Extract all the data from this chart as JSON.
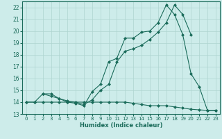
{
  "xlabel": "Humidex (Indice chaleur)",
  "background_color": "#cdecea",
  "grid_color": "#aed4d0",
  "line_color": "#1a6b5a",
  "xlim": [
    -0.5,
    23.5
  ],
  "ylim": [
    13,
    22.5
  ],
  "yticks": [
    13,
    14,
    15,
    16,
    17,
    18,
    19,
    20,
    21,
    22
  ],
  "xticks": [
    0,
    1,
    2,
    3,
    4,
    5,
    6,
    7,
    8,
    9,
    10,
    11,
    12,
    13,
    14,
    15,
    16,
    17,
    18,
    19,
    20,
    21,
    22,
    23
  ],
  "line1_x": [
    0,
    1,
    2,
    3,
    4,
    5,
    6,
    7,
    8,
    9,
    10,
    11,
    12,
    13,
    14,
    15,
    16,
    17,
    18,
    19,
    20,
    21,
    22,
    23
  ],
  "line1_y": [
    14.0,
    14.0,
    14.7,
    14.7,
    14.3,
    14.0,
    13.9,
    13.7,
    14.9,
    15.5,
    17.4,
    17.7,
    19.4,
    19.4,
    19.9,
    20.0,
    20.7,
    22.2,
    21.4,
    19.7,
    16.4,
    15.3,
    13.3,
    13.3
  ],
  "line2_x": [
    2,
    3,
    4,
    5,
    6,
    7,
    8,
    9,
    10,
    11,
    12,
    13,
    14,
    15,
    16,
    17,
    18,
    19,
    20
  ],
  "line2_y": [
    14.7,
    14.5,
    14.3,
    14.1,
    14.0,
    13.8,
    14.2,
    15.0,
    15.5,
    17.4,
    18.3,
    18.5,
    18.8,
    19.3,
    19.9,
    20.7,
    22.2,
    21.4,
    19.7
  ],
  "line3_x": [
    0,
    1,
    2,
    3,
    4,
    5,
    6,
    7,
    8,
    9,
    10,
    11,
    12,
    13,
    14,
    15,
    16,
    17,
    18,
    19,
    20,
    21,
    22,
    23
  ],
  "line3_y": [
    14.0,
    14.0,
    14.0,
    14.0,
    14.0,
    14.0,
    14.0,
    14.0,
    14.0,
    14.0,
    14.0,
    14.0,
    14.0,
    13.9,
    13.8,
    13.7,
    13.7,
    13.7,
    13.6,
    13.5,
    13.4,
    13.35,
    13.3,
    13.3
  ]
}
